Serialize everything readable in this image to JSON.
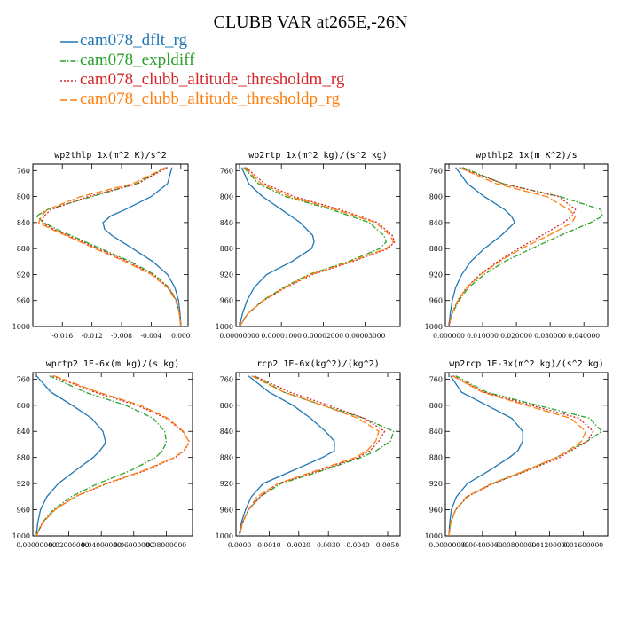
{
  "title": "CLUBB VAR at265E,-26N",
  "legend": [
    {
      "name": "cam078_dflt_rg",
      "color": "#1f77b4",
      "dash": "solid"
    },
    {
      "name": "cam078_expldiff",
      "color": "#2ca02c",
      "dash": "dashdot"
    },
    {
      "name": "cam078_clubb_altitude_thresholdm_rg",
      "color": "#d62728",
      "dash": "dotted"
    },
    {
      "name": "cam078_clubb_altitude_thresholdp_rg",
      "color": "#ff7f0e",
      "dash": "longdash"
    }
  ],
  "chart_data": [
    {
      "type": "line",
      "title": "wp2thlp   1x(m^2 K)/s^2",
      "ylim": [
        1000,
        750
      ],
      "y_ticks": [
        "760",
        "800",
        "840",
        "880",
        "920",
        "960",
        "1000"
      ],
      "xlim": [
        -0.0195,
        0.0005
      ],
      "x_ticks": [
        -0.016,
        -0.012,
        -0.008,
        -0.004,
        0.0
      ],
      "x_tick_labels": [
        "-0.016",
        "-0.012",
        "-0.008",
        "-0.004",
        "0.000"
      ],
      "y": [
        755,
        780,
        800,
        820,
        830,
        840,
        850,
        860,
        880,
        900,
        920,
        940,
        960,
        980,
        1000
      ],
      "series": [
        {
          "name": "cam078_dflt_rg",
          "values": [
            -0.0012,
            -0.0018,
            -0.004,
            -0.0075,
            -0.0095,
            -0.0105,
            -0.0103,
            -0.0093,
            -0.0065,
            -0.0038,
            -0.0018,
            -0.0008,
            -0.0003,
            -0.0001,
            0.0
          ]
        },
        {
          "name": "cam078_expldiff",
          "values": [
            -0.002,
            -0.006,
            -0.012,
            -0.018,
            -0.0195,
            -0.0185,
            -0.0168,
            -0.0148,
            -0.0108,
            -0.0068,
            -0.0036,
            -0.0016,
            -0.0006,
            -0.0002,
            0.0
          ]
        },
        {
          "name": "cam078_clubb_altitude_thresholdm_rg",
          "values": [
            -0.0018,
            -0.0058,
            -0.0125,
            -0.0175,
            -0.0185,
            -0.0188,
            -0.0172,
            -0.0152,
            -0.0112,
            -0.0072,
            -0.0038,
            -0.0017,
            -0.0006,
            -0.0002,
            0.0
          ]
        },
        {
          "name": "cam078_clubb_altitude_thresholdp_rg",
          "values": [
            -0.002,
            -0.0065,
            -0.0135,
            -0.018,
            -0.0188,
            -0.0192,
            -0.0175,
            -0.0155,
            -0.0116,
            -0.0075,
            -0.004,
            -0.0018,
            -0.0007,
            -0.0002,
            0.0
          ]
        }
      ]
    },
    {
      "type": "line",
      "title": "wp2rtp   1x(m^2 kg)/(s^2 kg)",
      "ylim": [
        1000,
        750
      ],
      "y_ticks": [
        "760",
        "800",
        "840",
        "880",
        "920",
        "960",
        "1000"
      ],
      "xlim": [
        0.0,
        3.75e-05
      ],
      "x_ticks": [
        0.0,
        1e-05,
        2e-05,
        3e-05
      ],
      "x_tick_labels": [
        "0.00000000",
        "0.00001000",
        "0.00002000",
        "0.00003000"
      ],
      "y": [
        755,
        780,
        800,
        820,
        840,
        860,
        870,
        880,
        900,
        920,
        940,
        960,
        980,
        1000
      ],
      "series": [
        {
          "name": "cam078_dflt_rg",
          "values": [
            5e-07,
            2.2e-06,
            5.5e-06,
            1e-05,
            1.45e-05,
            1.75e-05,
            1.78e-05,
            1.72e-05,
            1.25e-05,
            6.5e-06,
            3.5e-06,
            1.8e-06,
            7e-07,
            0.0
          ]
        },
        {
          "name": "cam078_expldiff",
          "values": [
            1e-06,
            4.5e-06,
            1.1e-05,
            2.2e-05,
            3.1e-05,
            3.45e-05,
            3.5e-05,
            3.35e-05,
            2.6e-05,
            1.65e-05,
            1.05e-05,
            5.5e-06,
            2e-06,
            0.0
          ]
        },
        {
          "name": "cam078_clubb_altitude_thresholdm_rg",
          "values": [
            1.5e-06,
            6e-06,
            1.3e-05,
            2.4e-05,
            3.3e-05,
            3.65e-05,
            3.7e-05,
            3.55e-05,
            2.7e-05,
            1.75e-05,
            1.1e-05,
            5.8e-06,
            2e-06,
            0.0
          ]
        },
        {
          "name": "cam078_clubb_altitude_thresholdp_rg",
          "values": [
            1.2e-06,
            5.2e-06,
            1.2e-05,
            2.3e-05,
            3.25e-05,
            3.6e-05,
            3.68e-05,
            3.5e-05,
            2.65e-05,
            1.7e-05,
            1.08e-05,
            5.7e-06,
            2e-06,
            0.0
          ]
        }
      ]
    },
    {
      "type": "line",
      "title": "wpthlp2   1x(m K^2)/s",
      "ylim": [
        1000,
        750
      ],
      "y_ticks": [
        "760",
        "800",
        "840",
        "880",
        "920",
        "960",
        "1000"
      ],
      "xlim": [
        0.0,
        0.046
      ],
      "x_ticks": [
        0.0,
        0.01,
        0.02,
        0.03,
        0.04
      ],
      "x_tick_labels": [
        "0.000000",
        "0.010000",
        "0.020000",
        "0.030000",
        "0.040000"
      ],
      "y": [
        755,
        780,
        800,
        820,
        830,
        840,
        860,
        880,
        900,
        920,
        940,
        960,
        980,
        1000
      ],
      "series": [
        {
          "name": "cam078_dflt_rg",
          "values": [
            0.002,
            0.0055,
            0.0105,
            0.0165,
            0.0185,
            0.0195,
            0.0155,
            0.0105,
            0.0065,
            0.0038,
            0.002,
            0.001,
            0.0004,
            0.0
          ]
        },
        {
          "name": "cam078_expldiff",
          "values": [
            0.004,
            0.016,
            0.033,
            0.045,
            0.0455,
            0.042,
            0.033,
            0.0245,
            0.0165,
            0.0105,
            0.0058,
            0.003,
            0.001,
            0.0
          ]
        },
        {
          "name": "cam078_clubb_altitude_thresholdm_rg",
          "values": [
            0.003,
            0.016,
            0.0325,
            0.0375,
            0.0365,
            0.034,
            0.0275,
            0.0205,
            0.0145,
            0.0092,
            0.0052,
            0.0026,
            0.0009,
            0.0
          ]
        },
        {
          "name": "cam078_clubb_altitude_thresholdp_rg",
          "values": [
            0.003,
            0.014,
            0.029,
            0.0355,
            0.0375,
            0.0365,
            0.0295,
            0.0215,
            0.015,
            0.0095,
            0.0053,
            0.0027,
            0.0009,
            0.0
          ]
        }
      ]
    },
    {
      "type": "line",
      "title": "wprtp2   1E-6x(m kg)/(s kg)",
      "ylim": [
        1000,
        750
      ],
      "y_ticks": [
        "760",
        "800",
        "840",
        "880",
        "920",
        "960",
        "1000"
      ],
      "xlim": [
        0.0,
        0.094
      ],
      "x_ticks": [
        0.0,
        0.02,
        0.04,
        0.06,
        0.08
      ],
      "x_tick_labels": [
        "0.00000000",
        "0.02000000",
        "0.04000000",
        "0.06000000",
        "0.08000000"
      ],
      "y": [
        755,
        780,
        800,
        820,
        840,
        855,
        860,
        870,
        880,
        900,
        920,
        940,
        960,
        980,
        1000
      ],
      "series": [
        {
          "name": "cam078_dflt_rg",
          "values": [
            0.0,
            0.009,
            0.022,
            0.034,
            0.041,
            0.0425,
            0.042,
            0.039,
            0.035,
            0.024,
            0.0135,
            0.0065,
            0.0025,
            0.0008,
            0.0
          ]
        },
        {
          "name": "cam078_expldiff",
          "values": [
            0.008,
            0.03,
            0.055,
            0.072,
            0.079,
            0.08,
            0.0795,
            0.0775,
            0.0735,
            0.058,
            0.038,
            0.0215,
            0.0105,
            0.0035,
            0.0
          ]
        },
        {
          "name": "cam078_clubb_altitude_thresholdm_rg",
          "values": [
            0.01,
            0.036,
            0.062,
            0.08,
            0.09,
            0.094,
            0.0935,
            0.091,
            0.0855,
            0.067,
            0.0435,
            0.024,
            0.0115,
            0.0038,
            0.0
          ]
        },
        {
          "name": "cam078_clubb_altitude_thresholdp_rg",
          "values": [
            0.011,
            0.038,
            0.064,
            0.081,
            0.0905,
            0.0938,
            0.0935,
            0.0905,
            0.085,
            0.066,
            0.043,
            0.0238,
            0.0114,
            0.0037,
            0.0
          ]
        }
      ]
    },
    {
      "type": "line",
      "title": "rcp2   1E-6x(kg^2)/(kg^2)",
      "ylim": [
        1000,
        750
      ],
      "y_ticks": [
        "760",
        "800",
        "840",
        "880",
        "920",
        "960",
        "1000"
      ],
      "xlim": [
        0.0,
        0.0053
      ],
      "x_ticks": [
        0.0,
        0.001,
        0.002,
        0.003,
        0.004,
        0.005
      ],
      "x_tick_labels": [
        "0.0000",
        "0.0010",
        "0.0020",
        "0.0030",
        "0.0040",
        "0.0050"
      ],
      "y": [
        755,
        780,
        800,
        820,
        840,
        855,
        870,
        880,
        900,
        920,
        940,
        960,
        980,
        1000
      ],
      "series": [
        {
          "name": "cam078_dflt_rg",
          "values": [
            0.0003,
            0.001,
            0.0018,
            0.0024,
            0.0029,
            0.0032,
            0.0032,
            0.0028,
            0.0018,
            0.0008,
            0.0004,
            0.0002,
            6e-05,
            0.0
          ]
        },
        {
          "name": "cam078_expldiff",
          "values": [
            0.0005,
            0.0015,
            0.0028,
            0.0042,
            0.0052,
            0.0051,
            0.0046,
            0.0041,
            0.0028,
            0.0014,
            0.0007,
            0.0003,
            0.0001,
            0.0
          ]
        },
        {
          "name": "cam078_clubb_altitude_thresholdm_rg",
          "values": [
            0.0005,
            0.0017,
            0.003,
            0.0042,
            0.0049,
            0.0047,
            0.0044,
            0.004,
            0.0027,
            0.0013,
            0.0007,
            0.0003,
            0.0001,
            0.0
          ]
        },
        {
          "name": "cam078_clubb_altitude_thresholdp_rg",
          "values": [
            0.0004,
            0.0015,
            0.0028,
            0.004,
            0.0047,
            0.0046,
            0.0043,
            0.0039,
            0.0026,
            0.0013,
            0.0006,
            0.0003,
            0.0001,
            0.0
          ]
        }
      ]
    },
    {
      "type": "line",
      "title": "wp2rcp   1E-3x(m^2 kg)/(s^2 kg)",
      "ylim": [
        1000,
        750
      ],
      "y_ticks": [
        "760",
        "800",
        "840",
        "880",
        "920",
        "960",
        "1000"
      ],
      "xlim": [
        0.0,
        0.0185
      ],
      "x_ticks": [
        0.0,
        0.004,
        0.008,
        0.012,
        0.016
      ],
      "x_tick_labels": [
        "0.00000000",
        "0.00400000",
        "0.00800000",
        "0.01200000",
        "0.01600000"
      ],
      "y": [
        755,
        780,
        800,
        820,
        840,
        855,
        870,
        880,
        900,
        920,
        940,
        960,
        980,
        1000
      ],
      "series": [
        {
          "name": "cam078_dflt_rg",
          "values": [
            0.0002,
            0.0015,
            0.0045,
            0.0075,
            0.0088,
            0.0088,
            0.0082,
            0.0072,
            0.0048,
            0.0022,
            0.0009,
            0.0003,
            0.0001,
            0.0
          ]
        },
        {
          "name": "cam078_expldiff",
          "values": [
            0.0008,
            0.0045,
            0.0105,
            0.0168,
            0.0182,
            0.0165,
            0.0142,
            0.0128,
            0.0092,
            0.0052,
            0.0022,
            0.0008,
            0.0002,
            0.0
          ]
        },
        {
          "name": "cam078_clubb_altitude_thresholdm_rg",
          "values": [
            0.0005,
            0.0042,
            0.0098,
            0.0155,
            0.0172,
            0.0165,
            0.0145,
            0.0132,
            0.0094,
            0.0053,
            0.0022,
            0.0008,
            0.0002,
            0.0
          ]
        },
        {
          "name": "cam078_clubb_altitude_thresholdp_rg",
          "values": [
            0.0004,
            0.004,
            0.0092,
            0.0145,
            0.0163,
            0.0158,
            0.0142,
            0.0128,
            0.0091,
            0.0051,
            0.0021,
            0.0008,
            0.0002,
            0.0
          ]
        }
      ]
    }
  ]
}
